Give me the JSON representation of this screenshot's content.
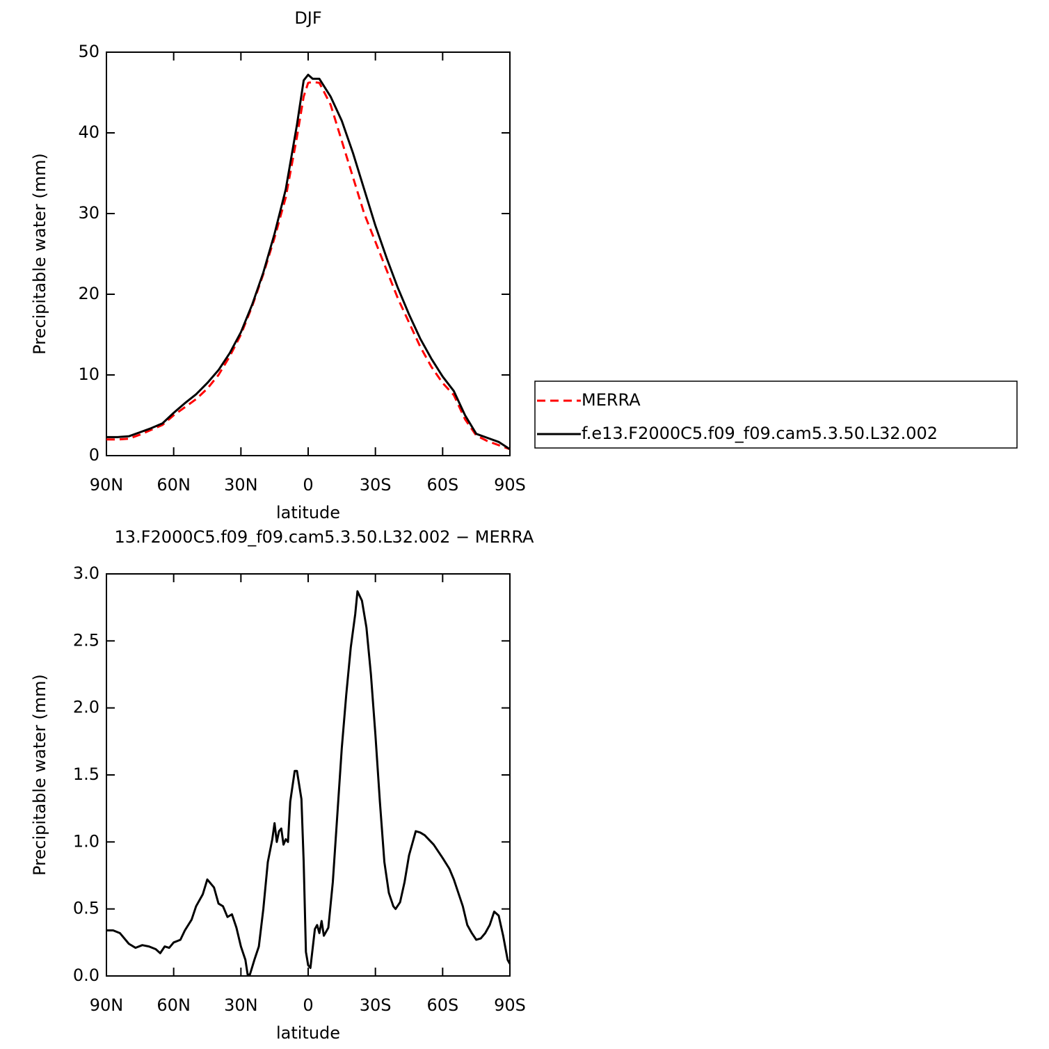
{
  "chart_data": [
    {
      "type": "line",
      "title": "DJF",
      "x_label": "latitude",
      "y_label": "Precipitable water (mm)",
      "xlim": [
        90,
        -90
      ],
      "xticks": [
        {
          "value": 90,
          "label": "90N"
        },
        {
          "value": 60,
          "label": "60N"
        },
        {
          "value": 30,
          "label": "30N"
        },
        0,
        {
          "value": -30,
          "label": "30S"
        },
        {
          "value": -60,
          "label": "60S"
        },
        {
          "value": -90,
          "label": "90S"
        }
      ],
      "ylim": [
        0,
        50
      ],
      "yticks": [
        0,
        10,
        20,
        30,
        40,
        50
      ],
      "legend": "right",
      "x": [
        90,
        85,
        80,
        75,
        70,
        65,
        60,
        55,
        50,
        45,
        40,
        35,
        30,
        25,
        20,
        15,
        10,
        5,
        2,
        0,
        -2,
        -5,
        -10,
        -15,
        -20,
        -25,
        -30,
        -35,
        -40,
        -45,
        -50,
        -55,
        -60,
        -65,
        -70,
        -75,
        -80,
        -85,
        -90
      ],
      "series": [
        {
          "name": "MERRA",
          "color": "#ff0000",
          "dashed": true,
          "values": [
            2.0,
            2.0,
            2.1,
            2.6,
            3.2,
            3.8,
            5.0,
            6.0,
            7.0,
            8.3,
            10.0,
            12.3,
            15.0,
            18.5,
            22.5,
            27,
            32,
            39.5,
            44.5,
            46.2,
            46.3,
            46.2,
            43.5,
            39,
            34.5,
            30,
            26.5,
            23,
            19.5,
            16.5,
            13.5,
            11,
            9,
            7.5,
            4.5,
            2.5,
            1.8,
            1.3,
            0.8
          ]
        },
        {
          "name": "f.e13.F2000C5.f09_f09.cam5.3.50.L32.002",
          "color": "#000000",
          "dashed": false,
          "values": [
            2.3,
            2.3,
            2.4,
            2.9,
            3.4,
            4.0,
            5.3,
            6.5,
            7.6,
            9.0,
            10.6,
            12.7,
            15.3,
            18.7,
            22.7,
            27.5,
            33.0,
            41,
            46.5,
            47.2,
            46.7,
            46.7,
            44.5,
            41.5,
            37.5,
            33,
            28.5,
            24.5,
            20.8,
            17.5,
            14.5,
            12,
            9.8,
            8,
            5,
            2.7,
            2.2,
            1.7,
            0.8
          ]
        }
      ]
    },
    {
      "type": "line",
      "title": "13.F2000C5.f09_f09.cam5.3.50.L32.002 − MERRA",
      "x_label": "latitude",
      "y_label": "Precipitable water (mm)",
      "xlim": [
        90,
        -90
      ],
      "xticks": [
        {
          "value": 90,
          "label": "90N"
        },
        {
          "value": 60,
          "label": "60N"
        },
        {
          "value": 30,
          "label": "30N"
        },
        0,
        {
          "value": -30,
          "label": "30S"
        },
        {
          "value": -60,
          "label": "60S"
        },
        {
          "value": -90,
          "label": "90S"
        }
      ],
      "ylim": [
        0,
        3
      ],
      "yticks": [
        {
          "value": 0,
          "label": "0.0"
        },
        0.5,
        {
          "value": 1,
          "label": "1.0"
        },
        1.5,
        {
          "value": 2,
          "label": "2.0"
        },
        2.5,
        {
          "value": 3,
          "label": "3.0"
        }
      ],
      "x": [
        90,
        87,
        84,
        80,
        77,
        74,
        71,
        68,
        66,
        64,
        62,
        60,
        57,
        55,
        52,
        50,
        47,
        45,
        44,
        42,
        40,
        38,
        36,
        34,
        32,
        30,
        28,
        27,
        26,
        24,
        22,
        20,
        18,
        16,
        15,
        14,
        13,
        12,
        11,
        10,
        9,
        8,
        6,
        5,
        3,
        2,
        1,
        0,
        -1,
        -3,
        -4,
        -5,
        -6,
        -7,
        -9,
        -11,
        -13,
        -15,
        -17,
        -19,
        -21,
        -22,
        -24,
        -26,
        -28,
        -30,
        -32,
        -34,
        -36,
        -38,
        -39,
        -41,
        -43,
        -45,
        -48,
        -50,
        -52,
        -56,
        -60,
        -63,
        -65,
        -67,
        -69,
        -71,
        -73,
        -75,
        -77,
        -79,
        -81,
        -83,
        -85,
        -87,
        -89,
        -90
      ],
      "series": [
        {
          "color": "#000000",
          "dashed": false,
          "values": [
            0.34,
            0.34,
            0.32,
            0.24,
            0.21,
            0.23,
            0.22,
            0.2,
            0.17,
            0.22,
            0.21,
            0.25,
            0.27,
            0.34,
            0.42,
            0.52,
            0.61,
            0.72,
            0.7,
            0.66,
            0.54,
            0.52,
            0.44,
            0.46,
            0.36,
            0.22,
            0.12,
            0.01,
            0.01,
            0.12,
            0.22,
            0.5,
            0.85,
            1.02,
            1.14,
            1.0,
            1.08,
            1.1,
            0.98,
            1.02,
            1.0,
            1.3,
            1.53,
            1.53,
            1.32,
            0.85,
            0.18,
            0.08,
            0.06,
            0.35,
            0.38,
            0.32,
            0.41,
            0.3,
            0.36,
            0.7,
            1.2,
            1.7,
            2.1,
            2.45,
            2.7,
            2.87,
            2.8,
            2.6,
            2.25,
            1.8,
            1.3,
            0.85,
            0.62,
            0.52,
            0.5,
            0.55,
            0.7,
            0.9,
            1.08,
            1.07,
            1.05,
            0.98,
            0.88,
            0.8,
            0.72,
            0.62,
            0.52,
            0.38,
            0.32,
            0.27,
            0.28,
            0.32,
            0.38,
            0.48,
            0.45,
            0.3,
            0.12,
            0.09
          ]
        }
      ]
    }
  ]
}
